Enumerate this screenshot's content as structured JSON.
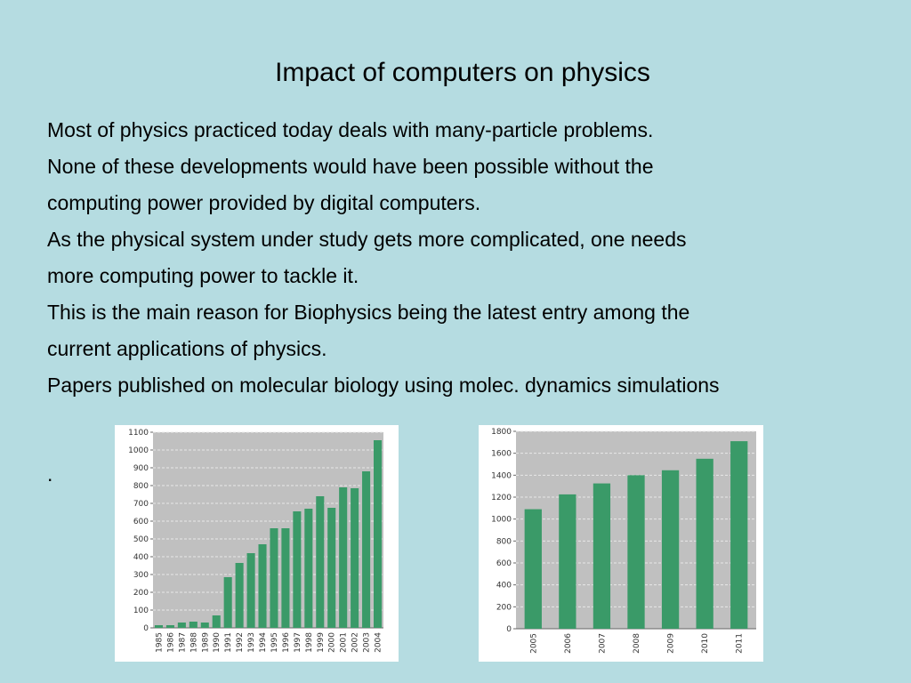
{
  "slide": {
    "title": "Impact of computers on physics",
    "lines": [
      "Most of physics practiced today deals with many-particle problems.",
      "None of these developments would have been possible without the",
      "computing power provided by digital computers.",
      "As the physical system under study gets more complicated, one needs",
      "more computing power to tackle it.",
      "This is the main reason for Biophysics being the latest entry among the",
      "current applications of physics.",
      "Papers published on molecular biology using molec. dynamics simulations"
    ],
    "trailing_dot": "."
  },
  "colors": {
    "background": "#b5dce1",
    "plot_bg": "#c0c0c0",
    "bar": "#3a9a68",
    "grid": "#e8e8e8"
  },
  "chart_data": [
    {
      "type": "bar",
      "categories": [
        "1985",
        "1986",
        "1987",
        "1988",
        "1989",
        "1990",
        "1991",
        "1992",
        "1993",
        "1994",
        "1995",
        "1996",
        "1997",
        "1998",
        "1999",
        "2000",
        "2001",
        "2002",
        "2003",
        "2004"
      ],
      "values": [
        15,
        15,
        30,
        35,
        30,
        70,
        285,
        365,
        420,
        470,
        560,
        560,
        655,
        670,
        740,
        675,
        790,
        785,
        880,
        1055
      ],
      "ylim": [
        0,
        1100
      ],
      "yticks": [
        0,
        100,
        200,
        300,
        400,
        500,
        600,
        700,
        800,
        900,
        1000,
        1100
      ],
      "grid": true
    },
    {
      "type": "bar",
      "categories": [
        "2005",
        "2006",
        "2007",
        "2008",
        "2009",
        "2010",
        "2011"
      ],
      "values": [
        1090,
        1225,
        1325,
        1400,
        1445,
        1550,
        1710
      ],
      "ylim": [
        0,
        1800
      ],
      "yticks": [
        0,
        200,
        400,
        600,
        800,
        1000,
        1200,
        1400,
        1600,
        1800
      ],
      "grid": true
    }
  ]
}
